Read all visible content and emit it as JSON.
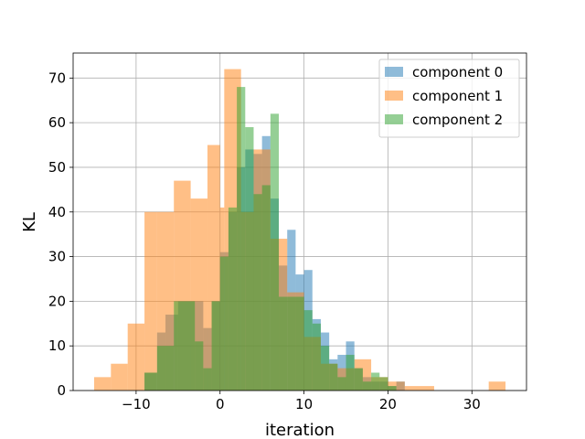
{
  "chart_data": {
    "type": "bar",
    "subtype": "histogram-overlay",
    "title": "",
    "xlabel": "iteration",
    "ylabel": "KL",
    "xlim": [
      -17.5,
      36.5
    ],
    "ylim": [
      0,
      75.6
    ],
    "xticks": [
      -10,
      0,
      10,
      20,
      30
    ],
    "yticks": [
      0,
      10,
      20,
      30,
      40,
      50,
      60,
      70
    ],
    "grid": true,
    "legend_position": "top-right",
    "opacity": 0.5,
    "series": [
      {
        "name": "component 0",
        "color": "#1f77b4",
        "bins": [
          [
            -9.0,
            -7.5,
            4
          ],
          [
            -7.5,
            -6.5,
            13
          ],
          [
            -6.5,
            -5.0,
            17
          ],
          [
            -5.0,
            -4.0,
            20
          ],
          [
            -4.0,
            -2.0,
            20
          ],
          [
            -2.0,
            -1.0,
            14
          ],
          [
            -1.0,
            0.0,
            20
          ],
          [
            0.0,
            1.0,
            31
          ],
          [
            1.0,
            2.0,
            40
          ],
          [
            2.0,
            3.0,
            50
          ],
          [
            3.0,
            4.0,
            54
          ],
          [
            4.0,
            5.0,
            53
          ],
          [
            5.0,
            6.0,
            57
          ],
          [
            6.0,
            7.0,
            43
          ],
          [
            7.0,
            8.0,
            28
          ],
          [
            8.0,
            9.0,
            36
          ],
          [
            9.0,
            10.0,
            26
          ],
          [
            10.0,
            11.0,
            27
          ],
          [
            11.0,
            12.0,
            16
          ],
          [
            12.0,
            13.0,
            13
          ],
          [
            13.0,
            14.0,
            7
          ],
          [
            14.0,
            15.0,
            8
          ],
          [
            15.0,
            16.0,
            11
          ],
          [
            16.0,
            17.0,
            5
          ],
          [
            17.0,
            18.0,
            3
          ],
          [
            18.0,
            19.0,
            2
          ],
          [
            19.0,
            20.0,
            2
          ],
          [
            20.0,
            21.0,
            1
          ],
          [
            21.0,
            22.0,
            2
          ]
        ]
      },
      {
        "name": "component 1",
        "color": "#ff7f0e",
        "bins": [
          [
            -15.0,
            -13.0,
            3
          ],
          [
            -13.0,
            -11.0,
            6
          ],
          [
            -11.0,
            -9.0,
            15
          ],
          [
            -9.0,
            -7.5,
            40
          ],
          [
            -7.5,
            -5.5,
            40
          ],
          [
            -5.5,
            -3.5,
            47
          ],
          [
            -3.5,
            -1.5,
            43
          ],
          [
            -1.5,
            0.0,
            55
          ],
          [
            0.0,
            0.5,
            41
          ],
          [
            0.5,
            2.5,
            72
          ],
          [
            2.5,
            4.0,
            40
          ],
          [
            4.0,
            6.0,
            54
          ],
          [
            6.0,
            8.0,
            34
          ],
          [
            8.0,
            10.0,
            22
          ],
          [
            10.0,
            12.0,
            12
          ],
          [
            12.0,
            14.0,
            6
          ],
          [
            14.0,
            16.0,
            5
          ],
          [
            16.0,
            18.0,
            7
          ],
          [
            18.0,
            20.0,
            3
          ],
          [
            20.0,
            22.0,
            2
          ],
          [
            22.0,
            25.5,
            1
          ],
          [
            32.0,
            34.0,
            2
          ]
        ]
      },
      {
        "name": "component 2",
        "color": "#2ca02c",
        "bins": [
          [
            -9.0,
            -7.5,
            4
          ],
          [
            -7.5,
            -5.5,
            10
          ],
          [
            -5.5,
            -4.0,
            20
          ],
          [
            -4.0,
            -3.0,
            20
          ],
          [
            -3.0,
            -2.0,
            11
          ],
          [
            -2.0,
            -1.0,
            5
          ],
          [
            -1.0,
            0.0,
            20
          ],
          [
            0.0,
            1.0,
            30
          ],
          [
            1.0,
            2.0,
            41
          ],
          [
            2.0,
            3.0,
            68
          ],
          [
            3.0,
            4.0,
            59
          ],
          [
            4.0,
            5.0,
            44
          ],
          [
            5.0,
            6.0,
            46
          ],
          [
            6.0,
            7.0,
            62
          ],
          [
            7.0,
            8.0,
            21
          ],
          [
            8.0,
            9.0,
            21
          ],
          [
            9.0,
            10.0,
            21
          ],
          [
            10.0,
            11.0,
            18
          ],
          [
            11.0,
            12.0,
            15
          ],
          [
            12.0,
            13.0,
            10
          ],
          [
            13.0,
            14.0,
            6
          ],
          [
            14.0,
            15.0,
            3
          ],
          [
            15.0,
            16.0,
            8
          ],
          [
            16.0,
            17.0,
            5
          ],
          [
            17.0,
            18.0,
            2
          ],
          [
            18.0,
            19.0,
            4
          ],
          [
            19.0,
            20.0,
            3
          ],
          [
            20.0,
            21.0,
            1
          ]
        ]
      }
    ]
  }
}
